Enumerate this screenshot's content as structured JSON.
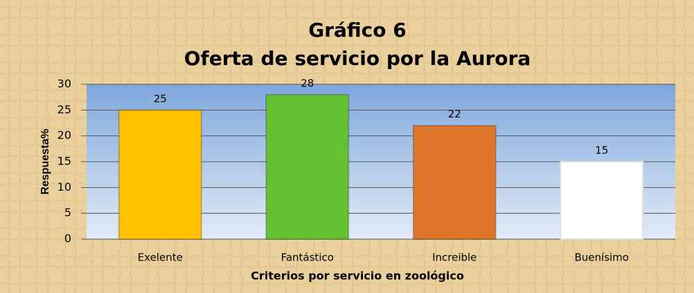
{
  "chart_data": {
    "type": "bar",
    "title": "Gráfico 6",
    "subtitle": "Oferta de servicio por la Aurora",
    "categories": [
      "Exelente",
      "Fantástico",
      "Increible",
      "Buenísimo"
    ],
    "values": [
      25,
      28,
      22,
      15
    ],
    "colors": [
      "#ffc000",
      "#66c132",
      "#e0762a",
      "#ffffff"
    ],
    "ylim": [
      0,
      30
    ],
    "yticks": [
      0,
      5,
      10,
      15,
      20,
      25,
      30
    ],
    "grid": true,
    "ylabel": "Respuesta%",
    "xlabel": "Criterios por servicio en zoológico"
  }
}
